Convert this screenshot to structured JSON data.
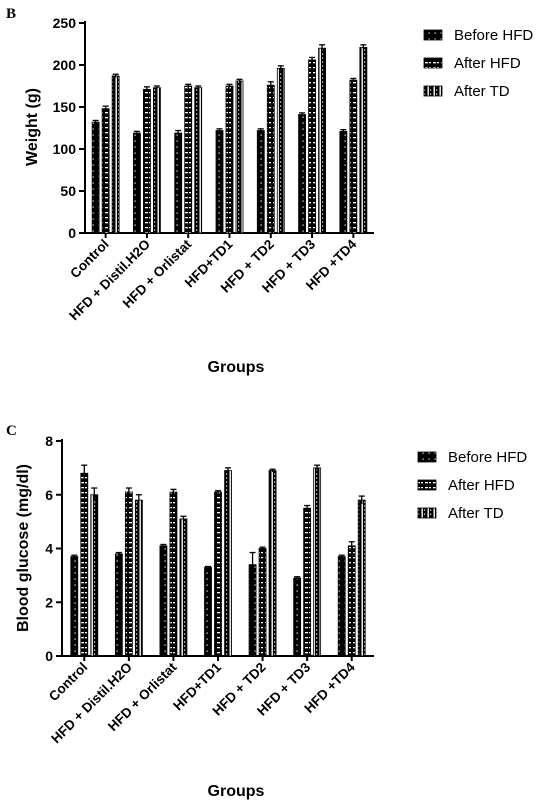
{
  "colors": {
    "bar": "#000000",
    "background": "#ffffff"
  },
  "chart_data": [
    {
      "type": "bar",
      "panel": "B",
      "title": "",
      "xlabel": "Groups",
      "ylabel": "Weight (g)",
      "ylim": [
        0,
        250
      ],
      "yticks": [
        0,
        50,
        100,
        150,
        200,
        250
      ],
      "grid": false,
      "legend_position": "right",
      "categories": [
        "Control",
        "HFD + Distil.H2O",
        "HFD + Orlistat",
        "HFD+TD1",
        "HFD + TD2",
        "HFD + TD3",
        "HFD +TD4"
      ],
      "series": [
        {
          "name": "Before HFD",
          "pattern": "dots",
          "values": [
            132,
            119,
            119,
            122,
            122,
            141,
            121
          ],
          "errors": [
            2,
            2,
            3,
            2,
            2,
            2,
            2
          ]
        },
        {
          "name": "After HFD",
          "pattern": "dashes",
          "values": [
            148,
            171,
            175,
            175,
            176,
            206,
            182
          ],
          "errors": [
            3,
            3,
            2,
            2,
            4,
            3,
            2
          ]
        },
        {
          "name": "After TD",
          "pattern": "stripes",
          "values": [
            187,
            173,
            173,
            181,
            196,
            220,
            221
          ],
          "errors": [
            2,
            2,
            2,
            2,
            3,
            4,
            3
          ]
        }
      ]
    },
    {
      "type": "bar",
      "panel": "C",
      "title": "",
      "xlabel": "Groups",
      "ylabel": "Blood glucose (mg/dl)",
      "ylim": [
        0,
        8
      ],
      "yticks": [
        0,
        2,
        4,
        6,
        8
      ],
      "grid": false,
      "legend_position": "right",
      "categories": [
        "Control",
        "HFD + Distil.H2O",
        "HFD + Orlistat",
        "HFD+TD1",
        "HFD + TD2",
        "HFD + TD3",
        "HFD +TD4"
      ],
      "series": [
        {
          "name": "Before HFD",
          "pattern": "dots",
          "values": [
            3.7,
            3.8,
            4.1,
            3.3,
            3.4,
            2.9,
            3.7
          ],
          "errors": [
            0.05,
            0.05,
            0.05,
            0.03,
            0.45,
            0.05,
            0.05
          ]
        },
        {
          "name": "After HFD",
          "pattern": "dashes",
          "values": [
            6.8,
            6.1,
            6.1,
            6.1,
            4.0,
            5.5,
            4.1
          ],
          "errors": [
            0.3,
            0.15,
            0.1,
            0.05,
            0.05,
            0.1,
            0.15
          ]
        },
        {
          "name": "After TD",
          "pattern": "stripes",
          "values": [
            6.0,
            5.8,
            5.1,
            6.9,
            6.9,
            7.0,
            5.8
          ],
          "errors": [
            0.25,
            0.2,
            0.1,
            0.1,
            0.05,
            0.1,
            0.15
          ]
        }
      ]
    }
  ]
}
